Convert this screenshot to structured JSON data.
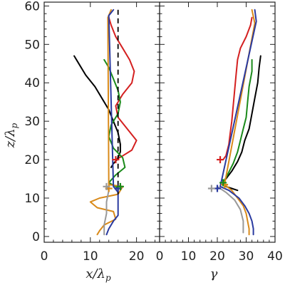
{
  "chart_data": [
    {
      "type": "line",
      "xlabel": "x/λ",
      "xlabel_sub": "p",
      "ylabel": "z/λ",
      "ylabel_sub": "p",
      "xlim": [
        0,
        25
      ],
      "ylim": [
        -1.5,
        61
      ],
      "xticks": [
        0,
        10,
        20
      ],
      "yticks": [
        0,
        10,
        20,
        30,
        40,
        50,
        60
      ],
      "ytick_labels": [
        "0",
        "10",
        "20",
        "30",
        "40",
        "50",
        "60"
      ],
      "xtick_labels": [
        "0",
        "10",
        "20"
      ],
      "reference_line": {
        "x": 16,
        "style": "dashed",
        "color": "#000000"
      },
      "series": [
        {
          "color": "#000000",
          "points": [
            [
              6.5,
              47
            ],
            [
              7.5,
              45
            ],
            [
              9,
              42
            ],
            [
              11,
              39
            ],
            [
              12.5,
              36
            ],
            [
              14,
              33
            ],
            [
              15,
              30
            ],
            [
              16,
              27
            ],
            [
              16.5,
              24
            ],
            [
              16.5,
              22
            ],
            [
              15.8,
              20
            ],
            [
              15,
              19
            ],
            [
              14.5,
              18
            ]
          ]
        },
        {
          "color": "#d42020",
          "points": [
            [
              14,
              57
            ],
            [
              14.5,
              55
            ],
            [
              15.5,
              52
            ],
            [
              17,
              49
            ],
            [
              18.5,
              46
            ],
            [
              19.5,
              43
            ],
            [
              19,
              40
            ],
            [
              17,
              37
            ],
            [
              15.5,
              34
            ],
            [
              16,
              31
            ],
            [
              18,
              28
            ],
            [
              20,
              25
            ],
            [
              19,
              22.5
            ],
            [
              17,
              21
            ],
            [
              15.5,
              20
            ]
          ]
        },
        {
          "color": "#1a8a1a",
          "points": [
            [
              13,
              46
            ],
            [
              14,
              44
            ],
            [
              15,
              41
            ],
            [
              16,
              38
            ],
            [
              16.5,
              35
            ],
            [
              16,
              32
            ],
            [
              14.5,
              29
            ],
            [
              14,
              26
            ],
            [
              15,
              23
            ],
            [
              17,
              20.5
            ],
            [
              17.5,
              18
            ],
            [
              15.5,
              16
            ],
            [
              14,
              14
            ],
            [
              15.5,
              13
            ],
            [
              16,
              12.5
            ]
          ]
        },
        {
          "color": "#d98a1a",
          "points": [
            [
              14.5,
              59
            ],
            [
              13.8,
              57
            ],
            [
              14,
              13.5
            ],
            [
              17,
              13
            ],
            [
              16,
              11
            ],
            [
              12,
              10
            ],
            [
              10,
              9
            ],
            [
              11.5,
              7.5
            ],
            [
              15,
              6.5
            ],
            [
              15.5,
              4.5
            ],
            [
              13,
              3
            ],
            [
              12,
              1.5
            ],
            [
              11.5,
              0.5
            ]
          ]
        },
        {
          "color": "#2a3aa0",
          "points": [
            [
              15,
              59
            ],
            [
              14,
              57.5
            ],
            [
              15,
              13
            ],
            [
              16,
              11.5
            ],
            [
              16,
              10
            ],
            [
              16,
              9
            ],
            [
              16,
              7.5
            ],
            [
              16,
              5.5
            ],
            [
              15,
              4
            ],
            [
              14,
              2
            ],
            [
              13.5,
              0.5
            ]
          ]
        },
        {
          "color": "#999999",
          "points": [
            [
              13.5,
              13
            ],
            [
              14,
              12
            ],
            [
              13.5,
              9
            ],
            [
              13.5,
              6
            ],
            [
              13,
              3
            ],
            [
              13,
              0.5
            ]
          ]
        }
      ],
      "markers": [
        {
          "symbol": "+",
          "x": 15.5,
          "y": 20,
          "color": "#d42020"
        },
        {
          "symbol": "+",
          "x": 16,
          "y": 12.5,
          "color": "#2a3aa0"
        },
        {
          "symbol": "+",
          "x": 14,
          "y": 12.5,
          "color": "#d98a1a"
        },
        {
          "symbol": "+",
          "x": 13.5,
          "y": 13,
          "color": "#999999"
        },
        {
          "symbol": "+",
          "x": 16.5,
          "y": 13,
          "color": "#1a8a1a"
        }
      ]
    },
    {
      "type": "line",
      "xlabel": "γ",
      "xlim": [
        0,
        40
      ],
      "ylim": [
        -1.5,
        61
      ],
      "xticks": [
        0,
        10,
        20,
        30,
        40
      ],
      "xtick_labels": [
        "0",
        "10",
        "20",
        "30",
        "40"
      ],
      "yticks": [
        0,
        10,
        20,
        30,
        40,
        50,
        60
      ],
      "series": [
        {
          "color": "#000000",
          "points": [
            [
              35,
              47
            ],
            [
              34.5,
              44
            ],
            [
              34,
              40
            ],
            [
              33,
              36
            ],
            [
              32,
              32
            ],
            [
              31,
              28
            ],
            [
              29.5,
              25
            ],
            [
              28.5,
              22
            ],
            [
              27,
              19.5
            ],
            [
              25,
              17
            ],
            [
              23,
              15
            ],
            [
              22,
              14
            ],
            [
              23,
              13
            ],
            [
              25,
              12.5
            ],
            [
              27,
              12
            ]
          ]
        },
        {
          "color": "#d42020",
          "points": [
            [
              32,
              57
            ],
            [
              31.5,
              55
            ],
            [
              30,
              52
            ],
            [
              28,
              49
            ],
            [
              27,
              46
            ],
            [
              26.5,
              42
            ],
            [
              26,
              38
            ],
            [
              25.5,
              34
            ],
            [
              25,
              30
            ],
            [
              24.5,
              27
            ],
            [
              24,
              24
            ],
            [
              23,
              21
            ],
            [
              22,
              20
            ],
            [
              21,
              20
            ]
          ]
        },
        {
          "color": "#1a8a1a",
          "points": [
            [
              32,
              46
            ],
            [
              32,
              43
            ],
            [
              31,
              39
            ],
            [
              30.5,
              35
            ],
            [
              30,
              31
            ],
            [
              29,
              28
            ],
            [
              28,
              25
            ],
            [
              27,
              22
            ],
            [
              25.5,
              19
            ],
            [
              23.5,
              16
            ],
            [
              22,
              14
            ],
            [
              23,
              13
            ]
          ]
        },
        {
          "color": "#d98a1a",
          "points": [
            [
              32,
              59
            ],
            [
              33,
              55.5
            ],
            [
              22.5,
              13.5
            ],
            [
              25,
              12
            ],
            [
              27,
              10
            ],
            [
              29,
              8
            ],
            [
              30,
              6
            ],
            [
              30.5,
              4
            ],
            [
              31,
              2
            ],
            [
              31,
              0.5
            ]
          ]
        },
        {
          "color": "#2a3aa0",
          "points": [
            [
              33,
              59
            ],
            [
              33.5,
              56
            ],
            [
              21,
              13
            ],
            [
              24,
              12
            ],
            [
              27.5,
              10
            ],
            [
              29.5,
              8
            ],
            [
              31,
              6
            ],
            [
              32,
              4
            ],
            [
              32.5,
              2
            ],
            [
              32.5,
              0.5
            ]
          ]
        },
        {
          "color": "#999999",
          "points": [
            [
              20,
              13
            ],
            [
              23,
              11.5
            ],
            [
              26,
              9.5
            ],
            [
              28,
              7
            ],
            [
              29,
              4
            ],
            [
              29,
              1
            ]
          ]
        }
      ],
      "markers": [
        {
          "symbol": "+",
          "x": 21,
          "y": 20,
          "color": "#d42020"
        },
        {
          "symbol": "+",
          "x": 20,
          "y": 12.5,
          "color": "#2a3aa0"
        },
        {
          "symbol": "+",
          "x": 22.5,
          "y": 13.5,
          "color": "#d98a1a"
        },
        {
          "symbol": "+",
          "x": 18,
          "y": 12.5,
          "color": "#999999"
        },
        {
          "symbol": "+",
          "x": 22,
          "y": 14,
          "color": "#1a8a1a"
        }
      ]
    }
  ]
}
